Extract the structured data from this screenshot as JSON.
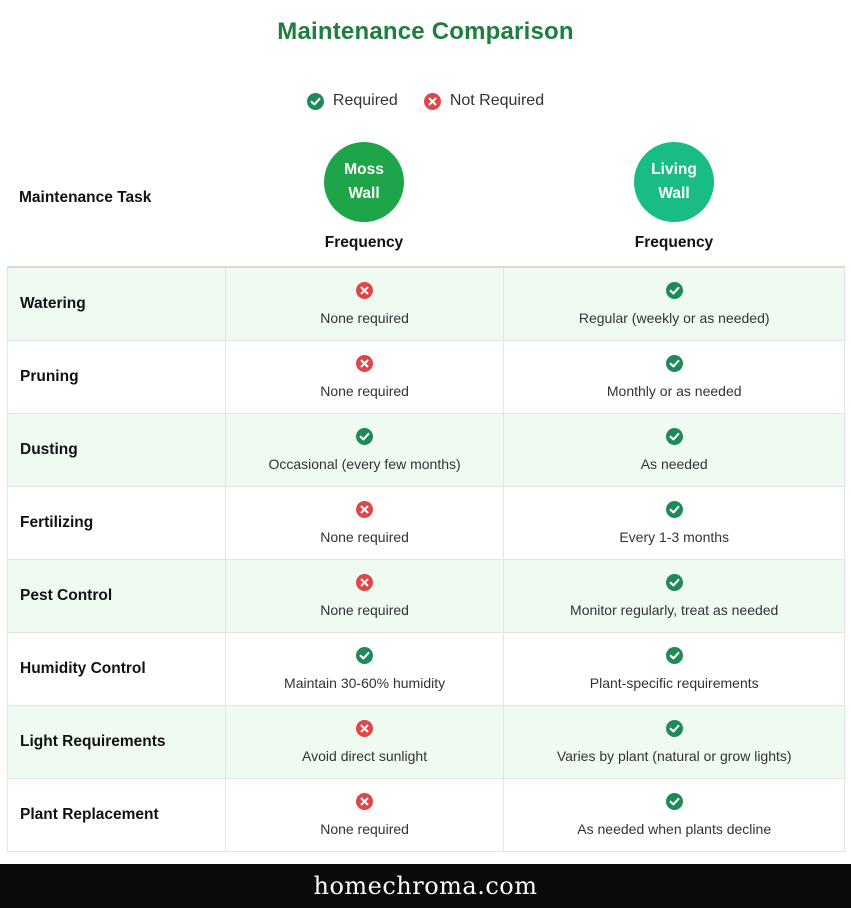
{
  "title": "Maintenance Comparison",
  "legend": {
    "required": "Required",
    "not_required": "Not Required"
  },
  "header": {
    "task_label": "Maintenance Task",
    "moss": {
      "line1": "Moss",
      "line2": "Wall",
      "sub": "Frequency"
    },
    "living": {
      "line1": "Living",
      "line2": "Wall",
      "sub": "Frequency"
    }
  },
  "colors": {
    "title": "#1e7e3e",
    "moss_badge": "#1ea54a",
    "living_badge": "#19bc84",
    "check": "#1f8a57",
    "cross": "#e0454a",
    "row_alt": "#effaf1"
  },
  "chart_data": {
    "type": "table",
    "title": "Maintenance Comparison",
    "columns": [
      "Maintenance Task",
      "Moss Wall Frequency",
      "Living Wall Frequency"
    ],
    "rows": [
      {
        "task": "Watering",
        "moss": {
          "required": false,
          "text": "None required"
        },
        "living": {
          "required": true,
          "text": "Regular (weekly or as needed)"
        }
      },
      {
        "task": "Pruning",
        "moss": {
          "required": false,
          "text": "None required"
        },
        "living": {
          "required": true,
          "text": "Monthly or as needed"
        }
      },
      {
        "task": "Dusting",
        "moss": {
          "required": true,
          "text": "Occasional (every few months)"
        },
        "living": {
          "required": true,
          "text": "As needed"
        }
      },
      {
        "task": "Fertilizing",
        "moss": {
          "required": false,
          "text": "None required"
        },
        "living": {
          "required": true,
          "text": "Every 1-3 months"
        }
      },
      {
        "task": "Pest Control",
        "moss": {
          "required": false,
          "text": "None required"
        },
        "living": {
          "required": true,
          "text": "Monitor regularly, treat as needed"
        }
      },
      {
        "task": "Humidity Control",
        "moss": {
          "required": true,
          "text": "Maintain 30-60% humidity"
        },
        "living": {
          "required": true,
          "text": "Plant-specific requirements"
        }
      },
      {
        "task": "Light Requirements",
        "moss": {
          "required": false,
          "text": "Avoid direct sunlight"
        },
        "living": {
          "required": true,
          "text": "Varies by plant (natural or grow lights)"
        }
      },
      {
        "task": "Plant Replacement",
        "moss": {
          "required": false,
          "text": "None required"
        },
        "living": {
          "required": true,
          "text": "As needed when plants decline"
        }
      }
    ]
  },
  "footer": {
    "brand": "homechroma.com"
  }
}
